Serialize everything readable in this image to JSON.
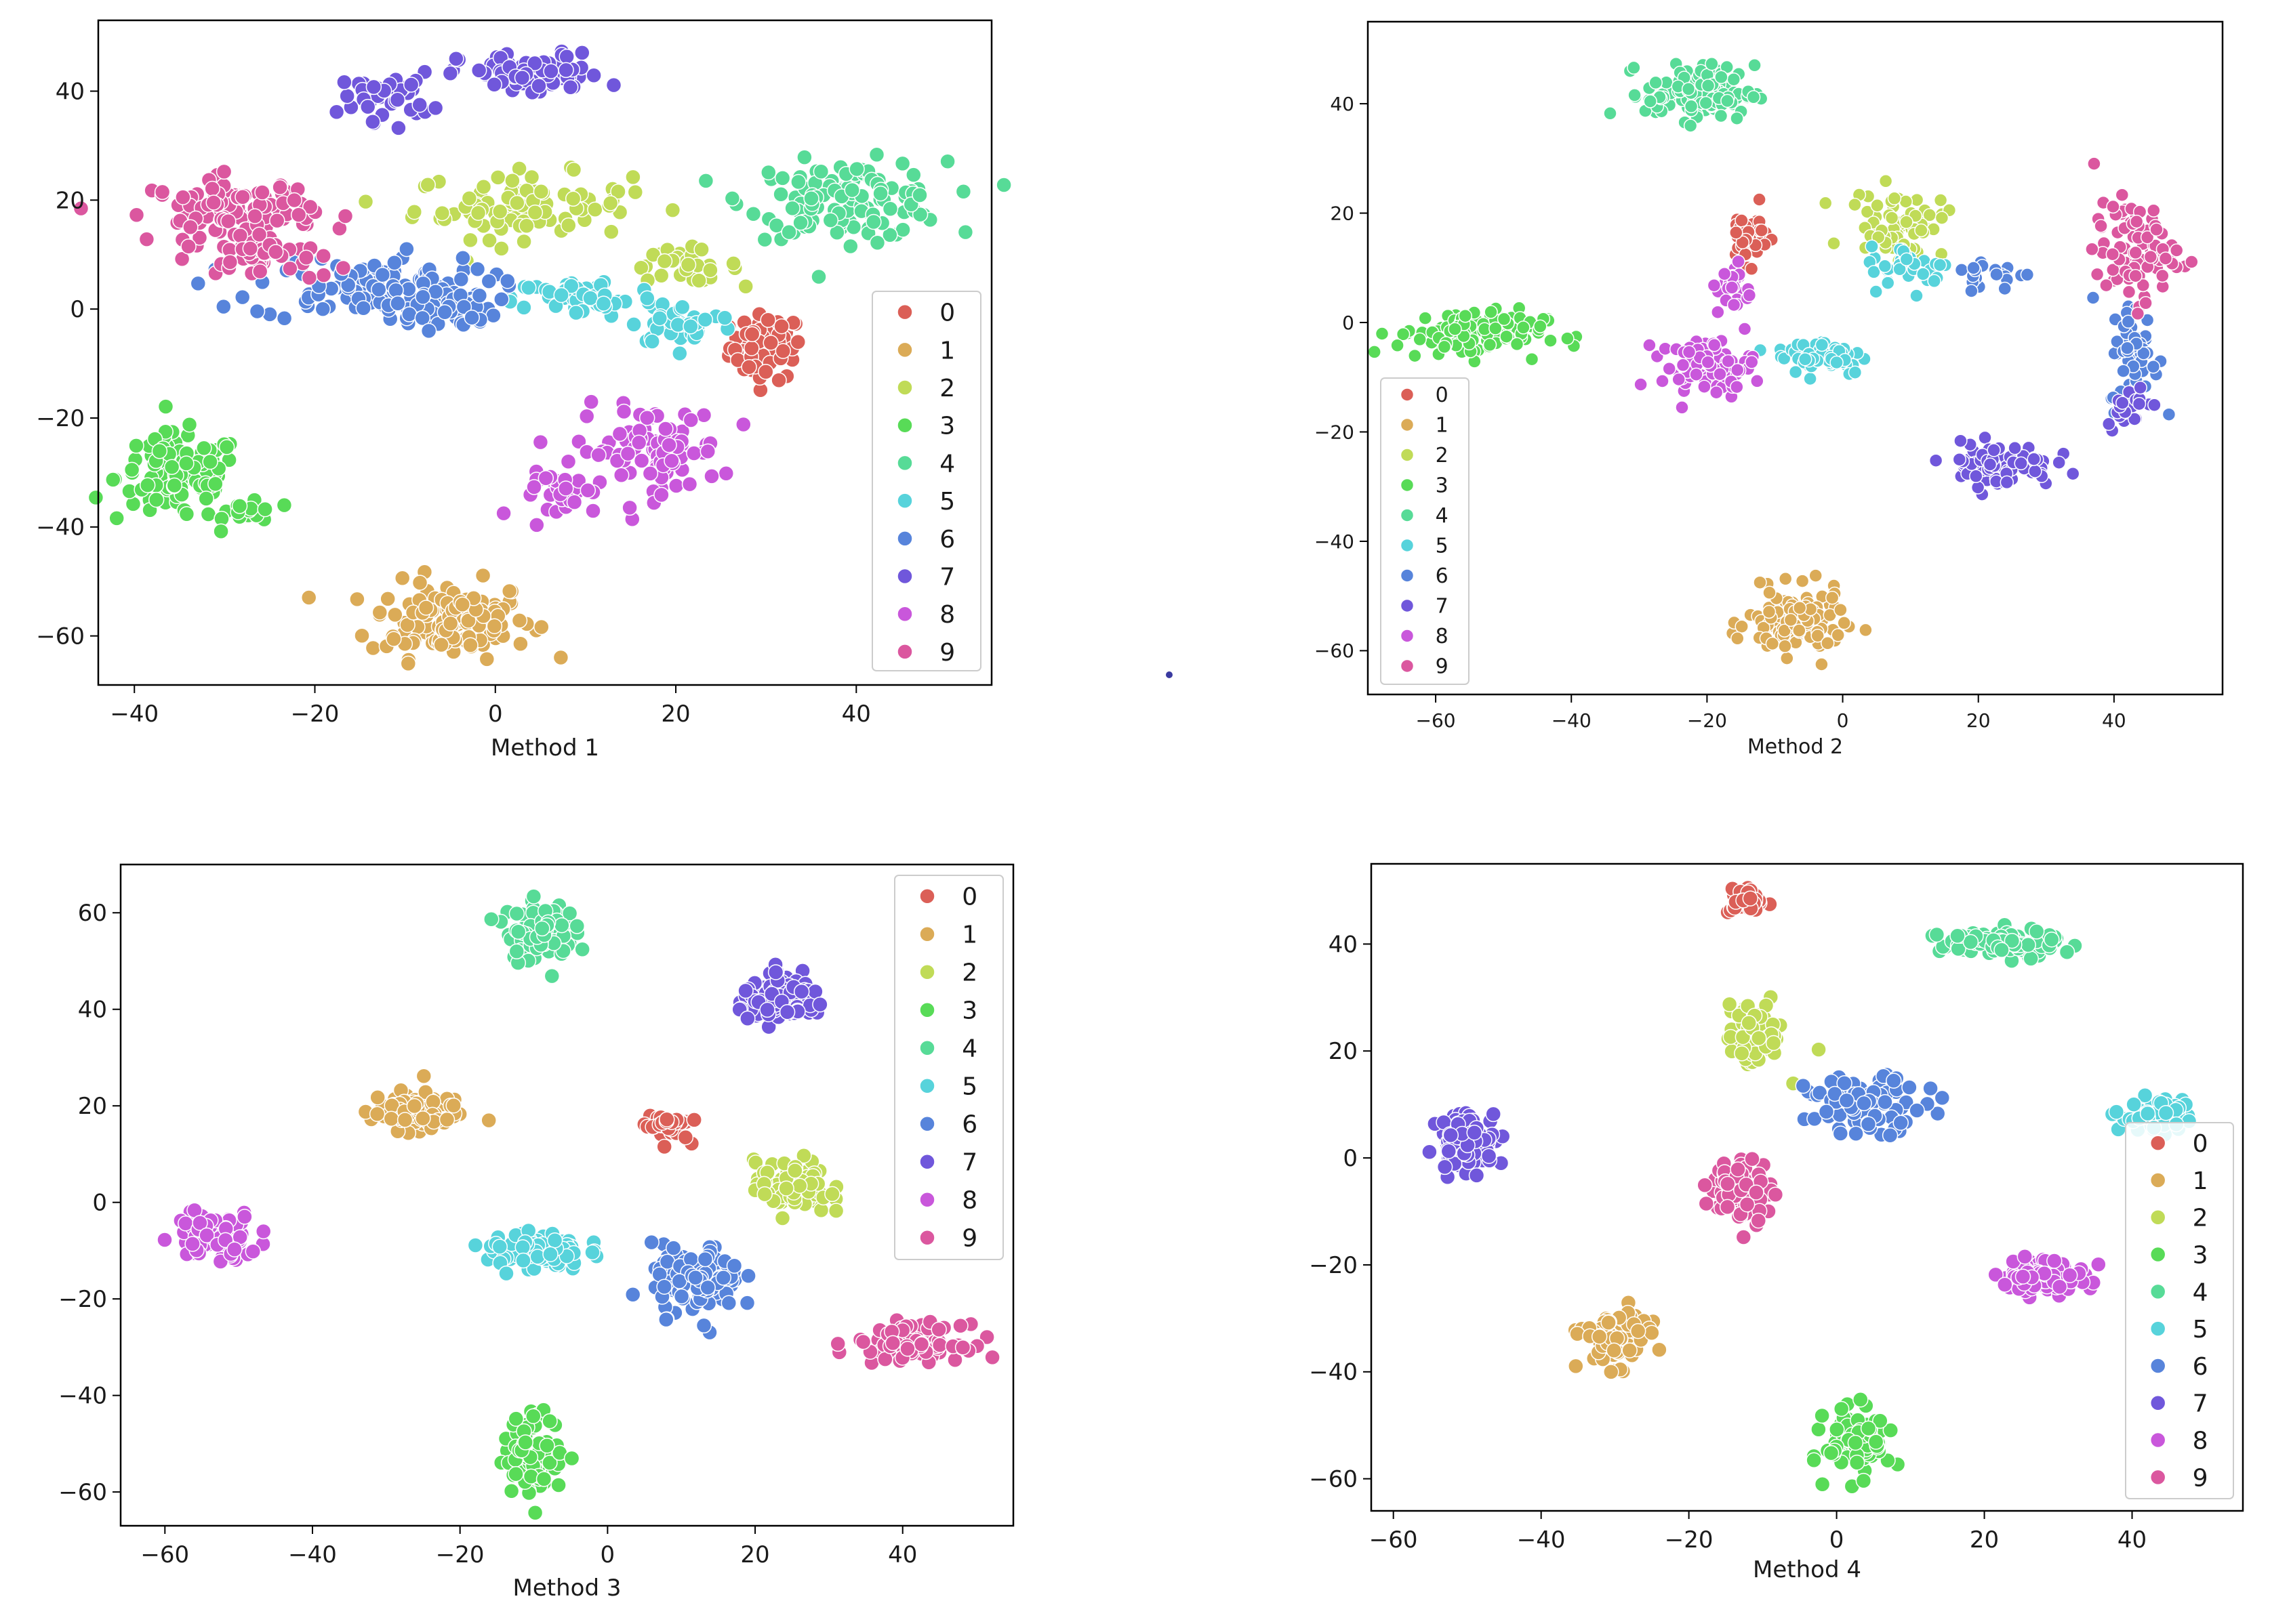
{
  "palette": [
    "#db5f57",
    "#dbab57",
    "#c0db57",
    "#58db57",
    "#57db97",
    "#57d3db",
    "#5784db",
    "#7057db",
    "#c957db",
    "#db579f"
  ],
  "chart_data": [
    {
      "type": "scatter",
      "title": "",
      "xlabel": "Method 1",
      "ylabel": "",
      "xlim": [
        -44,
        55
      ],
      "ylim": [
        -69,
        53
      ],
      "xticks": [
        -40,
        -20,
        0,
        20,
        40
      ],
      "yticks": [
        -60,
        -40,
        -20,
        0,
        20,
        40
      ],
      "tick_labels_x": [
        "−40",
        "−20",
        "0",
        "20",
        "40"
      ],
      "tick_labels_y": [
        "−60",
        "−40",
        "−20",
        "0",
        "20",
        "40"
      ],
      "legend": {
        "entries": [
          "0",
          "1",
          "2",
          "3",
          "4",
          "5",
          "6",
          "7",
          "8",
          "9"
        ],
        "position": "center-right"
      },
      "clusters": [
        {
          "label": "0",
          "cx": 30,
          "cy": -7,
          "sx": 2.0,
          "sy": 3.0,
          "n": 70
        },
        {
          "label": "1",
          "cx": -5,
          "cy": -57,
          "sx": 4.5,
          "sy": 3.5,
          "n": 130
        },
        {
          "label": "2",
          "cx": 3,
          "cy": 19,
          "sx": 6.0,
          "sy": 3.0,
          "n": 90
        },
        {
          "label": "2",
          "cx": 21,
          "cy": 8,
          "sx": 3.0,
          "sy": 1.5,
          "n": 30
        },
        {
          "label": "3",
          "cx": -35,
          "cy": -31,
          "sx": 3.5,
          "sy": 4.0,
          "n": 120
        },
        {
          "label": "3",
          "cx": -27,
          "cy": -37,
          "sx": 1.5,
          "sy": 1.5,
          "n": 15
        },
        {
          "label": "4",
          "cx": 39,
          "cy": 20,
          "sx": 5.5,
          "sy": 3.5,
          "n": 130
        },
        {
          "label": "5",
          "cx": 10,
          "cy": 2,
          "sx": 4.0,
          "sy": 1.8,
          "n": 60
        },
        {
          "label": "5",
          "cx": 21,
          "cy": -3,
          "sx": 3.0,
          "sy": 1.8,
          "n": 35
        },
        {
          "label": "6",
          "cx": -14,
          "cy": 4,
          "sx": 6.5,
          "sy": 3.0,
          "n": 110
        },
        {
          "label": "6",
          "cx": -6,
          "cy": 0,
          "sx": 3.0,
          "sy": 1.8,
          "n": 40
        },
        {
          "label": "7",
          "cx": 4,
          "cy": 43,
          "sx": 4.0,
          "sy": 2.0,
          "n": 80
        },
        {
          "label": "7",
          "cx": -12,
          "cy": 39,
          "sx": 2.5,
          "sy": 2.2,
          "n": 40
        },
        {
          "label": "8",
          "cx": 17,
          "cy": -26,
          "sx": 4.0,
          "sy": 4.0,
          "n": 90
        },
        {
          "label": "8",
          "cx": 8,
          "cy": -34,
          "sx": 2.5,
          "sy": 2.0,
          "n": 30
        },
        {
          "label": "9",
          "cx": -29,
          "cy": 18,
          "sx": 4.5,
          "sy": 3.0,
          "n": 110
        },
        {
          "label": "9",
          "cx": -25,
          "cy": 9,
          "sx": 3.0,
          "sy": 2.0,
          "n": 35
        }
      ]
    },
    {
      "type": "scatter",
      "title": "",
      "xlabel": "Method 2",
      "ylabel": "",
      "xlim": [
        -70,
        56
      ],
      "ylim": [
        -68,
        55
      ],
      "xticks": [
        -60,
        -40,
        -20,
        0,
        20,
        40
      ],
      "yticks": [
        -60,
        -40,
        -20,
        0,
        20,
        40
      ],
      "tick_labels_x": [
        "−60",
        "−40",
        "−20",
        "0",
        "20",
        "40"
      ],
      "tick_labels_y": [
        "−60",
        "−40",
        "−20",
        "0",
        "20",
        "40"
      ],
      "legend": {
        "entries": [
          "0",
          "1",
          "2",
          "3",
          "4",
          "5",
          "6",
          "7",
          "8",
          "9"
        ],
        "position": "lower-left"
      },
      "clusters": [
        {
          "label": "0",
          "cx": -14,
          "cy": 16,
          "sx": 1.5,
          "sy": 2.5,
          "n": 40
        },
        {
          "label": "1",
          "cx": -7,
          "cy": -55,
          "sx": 3.5,
          "sy": 3.0,
          "n": 120
        },
        {
          "label": "2",
          "cx": 8,
          "cy": 18,
          "sx": 3.5,
          "sy": 3.0,
          "n": 70
        },
        {
          "label": "3",
          "cx": -55,
          "cy": -2,
          "sx": 5.5,
          "sy": 2.2,
          "n": 110
        },
        {
          "label": "4",
          "cx": -21,
          "cy": 42,
          "sx": 4.0,
          "sy": 2.5,
          "n": 120
        },
        {
          "label": "5",
          "cx": -3,
          "cy": -6,
          "sx": 3.5,
          "sy": 1.8,
          "n": 60
        },
        {
          "label": "5",
          "cx": 10,
          "cy": 10,
          "sx": 3.0,
          "sy": 2.0,
          "n": 35
        },
        {
          "label": "6",
          "cx": 43,
          "cy": -6,
          "sx": 1.8,
          "sy": 5.0,
          "n": 60
        },
        {
          "label": "6",
          "cx": 22,
          "cy": 9,
          "sx": 3.0,
          "sy": 1.5,
          "n": 20
        },
        {
          "label": "7",
          "cx": 23,
          "cy": -26,
          "sx": 4.0,
          "sy": 2.0,
          "n": 90
        },
        {
          "label": "7",
          "cx": 42,
          "cy": -15,
          "sx": 1.5,
          "sy": 2.0,
          "n": 20
        },
        {
          "label": "8",
          "cx": -20,
          "cy": -8,
          "sx": 3.5,
          "sy": 2.5,
          "n": 80
        },
        {
          "label": "8",
          "cx": -16,
          "cy": 6,
          "sx": 1.2,
          "sy": 2.5,
          "n": 25
        },
        {
          "label": "9",
          "cx": 43,
          "cy": 13,
          "sx": 3.0,
          "sy": 4.5,
          "n": 90
        }
      ]
    },
    {
      "type": "scatter",
      "title": "",
      "xlabel": "Method 3",
      "ylabel": "",
      "xlim": [
        -66,
        55
      ],
      "ylim": [
        -67,
        70
      ],
      "xticks": [
        -60,
        -40,
        -20,
        0,
        20,
        40
      ],
      "yticks": [
        -60,
        -40,
        -20,
        0,
        20,
        40,
        60
      ],
      "tick_labels_x": [
        "−60",
        "−40",
        "−20",
        "0",
        "20",
        "40"
      ],
      "tick_labels_y": [
        "−60",
        "−40",
        "−20",
        "0",
        "20",
        "40",
        "60"
      ],
      "legend": {
        "entries": [
          "0",
          "1",
          "2",
          "3",
          "4",
          "5",
          "6",
          "7",
          "8",
          "9"
        ],
        "position": "upper-right"
      },
      "clusters": [
        {
          "label": "0",
          "cx": 8,
          "cy": 16,
          "sx": 1.5,
          "sy": 1.5,
          "n": 40
        },
        {
          "label": "1",
          "cx": -26,
          "cy": 19,
          "sx": 3.0,
          "sy": 2.0,
          "n": 100
        },
        {
          "label": "2",
          "cx": 25,
          "cy": 3,
          "sx": 2.5,
          "sy": 2.8,
          "n": 80
        },
        {
          "label": "3",
          "cx": -10,
          "cy": -52,
          "sx": 2.0,
          "sy": 4.0,
          "n": 100
        },
        {
          "label": "4",
          "cx": -9,
          "cy": 56,
          "sx": 2.3,
          "sy": 3.0,
          "n": 100
        },
        {
          "label": "5",
          "cx": -10,
          "cy": -10,
          "sx": 3.3,
          "sy": 2.0,
          "n": 100
        },
        {
          "label": "6",
          "cx": 12,
          "cy": -16,
          "sx": 3.0,
          "sy": 3.5,
          "n": 110
        },
        {
          "label": "7",
          "cx": 24,
          "cy": 42,
          "sx": 3.0,
          "sy": 2.2,
          "n": 100
        },
        {
          "label": "8",
          "cx": -53,
          "cy": -7,
          "sx": 2.8,
          "sy": 2.5,
          "n": 100
        },
        {
          "label": "9",
          "cx": 41,
          "cy": -29,
          "sx": 3.5,
          "sy": 1.8,
          "n": 100
        }
      ]
    },
    {
      "type": "scatter",
      "title": "",
      "xlabel": "Method 4",
      "ylabel": "",
      "xlim": [
        -63,
        55
      ],
      "ylim": [
        -66,
        55
      ],
      "xticks": [
        -60,
        -40,
        -20,
        0,
        20,
        40
      ],
      "yticks": [
        -60,
        -40,
        -20,
        0,
        20,
        40
      ],
      "tick_labels_x": [
        "−60",
        "−40",
        "−20",
        "0",
        "20",
        "40"
      ],
      "tick_labels_y": [
        "−60",
        "−40",
        "−20",
        "0",
        "20",
        "40"
      ],
      "legend": {
        "entries": [
          "0",
          "1",
          "2",
          "3",
          "4",
          "5",
          "6",
          "7",
          "8",
          "9"
        ],
        "position": "lower-right"
      },
      "clusters": [
        {
          "label": "0",
          "cx": -12,
          "cy": 48,
          "sx": 1.3,
          "sy": 1.2,
          "n": 40
        },
        {
          "label": "1",
          "cx": -30,
          "cy": -34,
          "sx": 2.2,
          "sy": 2.5,
          "n": 100
        },
        {
          "label": "2",
          "cx": -11,
          "cy": 23,
          "sx": 2.0,
          "sy": 3.0,
          "n": 80
        },
        {
          "label": "3",
          "cx": 3,
          "cy": -53,
          "sx": 2.2,
          "sy": 3.0,
          "n": 90
        },
        {
          "label": "4",
          "cx": 22,
          "cy": 40,
          "sx": 4.0,
          "sy": 1.3,
          "n": 100
        },
        {
          "label": "5",
          "cx": 43,
          "cy": 8,
          "sx": 2.5,
          "sy": 1.5,
          "n": 60
        },
        {
          "label": "6",
          "cx": 4,
          "cy": 10,
          "sx": 4.0,
          "sy": 2.5,
          "n": 100
        },
        {
          "label": "7",
          "cx": -50,
          "cy": 3,
          "sx": 2.0,
          "sy": 2.8,
          "n": 100
        },
        {
          "label": "8",
          "cx": 28,
          "cy": -22,
          "sx": 3.0,
          "sy": 1.5,
          "n": 100
        },
        {
          "label": "9",
          "cx": -13,
          "cy": -6,
          "sx": 2.0,
          "sy": 3.0,
          "n": 100
        }
      ]
    }
  ]
}
